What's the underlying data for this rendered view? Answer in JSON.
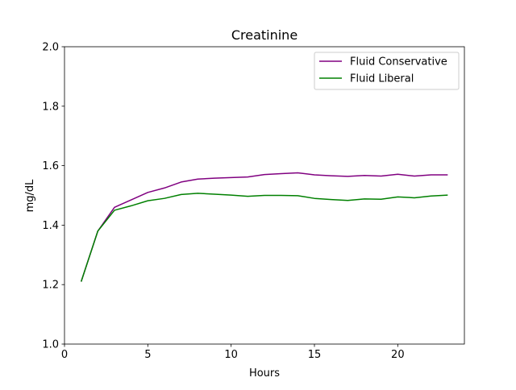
{
  "chart_data": {
    "type": "line",
    "title": "Creatinine",
    "xlabel": "Hours",
    "ylabel": "mg/dL",
    "xlim": [
      0,
      24
    ],
    "ylim": [
      1.0,
      2.0
    ],
    "xticks": [
      0,
      5,
      10,
      15,
      20
    ],
    "yticks": [
      1.0,
      1.2,
      1.4,
      1.6,
      1.8,
      2.0
    ],
    "grid": false,
    "legend_position": "top-right",
    "x": [
      1,
      2,
      3,
      4,
      5,
      6,
      7,
      8,
      9,
      10,
      11,
      12,
      13,
      14,
      15,
      16,
      17,
      18,
      19,
      20,
      21,
      22,
      23
    ],
    "series": [
      {
        "name": "Fluid Conservative",
        "color": "#800080",
        "values": [
          1.21,
          1.38,
          1.46,
          1.485,
          1.51,
          1.525,
          1.545,
          1.555,
          1.558,
          1.56,
          1.562,
          1.57,
          1.573,
          1.576,
          1.569,
          1.566,
          1.564,
          1.567,
          1.565,
          1.571,
          1.565,
          1.569,
          1.569
        ]
      },
      {
        "name": "Fluid Liberal",
        "color": "#008000",
        "values": [
          1.21,
          1.38,
          1.45,
          1.465,
          1.482,
          1.49,
          1.503,
          1.507,
          1.504,
          1.501,
          1.497,
          1.5,
          1.5,
          1.499,
          1.49,
          1.486,
          1.483,
          1.488,
          1.487,
          1.495,
          1.492,
          1.498,
          1.501
        ]
      }
    ]
  }
}
